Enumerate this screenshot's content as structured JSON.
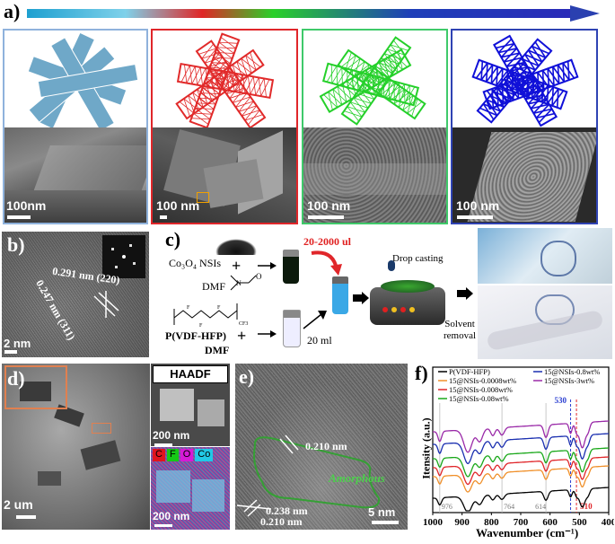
{
  "panel_a": {
    "label": "a)",
    "scale_labels": [
      "100nm",
      "100 nm",
      "100 nm",
      "100 nm"
    ],
    "frame_colors": [
      "#7fa7d8",
      "#e0262a",
      "#3fc96a",
      "#2f43b3"
    ],
    "sheet_colors": [
      "#6fa8c8",
      "#e12a2a",
      "#25d02a",
      "#1010d8"
    ]
  },
  "panel_b": {
    "label": "b)",
    "annotations": [
      "0.291 nm (220)",
      "0.247 nm (311)"
    ],
    "scale_label": "2 nm"
  },
  "panel_c": {
    "label": "c)",
    "reagent1": "Co₃O₄ NSIs",
    "solvent1": "DMF",
    "polymer": "P(VDF-HFP)",
    "solvent2": "DMF",
    "volume_added": "20-2000 ul",
    "volume_total": "20 ml",
    "step_casting": "Drop casting",
    "step_removal": "Solvent\nremoval",
    "plus": "+"
  },
  "panel_d": {
    "label": "d)",
    "scale_main": "2 um",
    "haadf_title": "HAADF",
    "scale_haadf": "200 nm",
    "scale_map": "200 nm",
    "elements": [
      {
        "symbol": "C",
        "color": "#e0141e"
      },
      {
        "symbol": "F",
        "color": "#16c816"
      },
      {
        "symbol": "O",
        "color": "#d61ad6"
      },
      {
        "symbol": "Co",
        "color": "#22c8e6"
      }
    ]
  },
  "panel_e": {
    "label": "e)",
    "annotations": [
      "0.210 nm",
      "Amorphous",
      "0.238 nm",
      "0.210 nm"
    ],
    "scale_label": "5 nm"
  },
  "panel_f": {
    "label": "f)",
    "xlabel": "Wavenumber (cm⁻¹)",
    "ylabel": "Itensity (a.u.)"
  },
  "chart_data": {
    "type": "line",
    "xlabel": "Wavenumber (cm-1)",
    "ylabel": "Itensity (a.u.)",
    "xlim": [
      1000,
      400
    ],
    "x_ticks": [
      1000,
      900,
      800,
      700,
      600,
      500,
      400
    ],
    "reference_lines": [
      976,
      764,
      614
    ],
    "marker_lines": [
      {
        "x": 530,
        "label": "530",
        "color": "#2b3fd1"
      },
      {
        "x": 510,
        "label": "510",
        "color": "#e0262a"
      }
    ],
    "series": [
      {
        "name": "P(VDF-HFP)",
        "color": "#000000"
      },
      {
        "name": "15@NSIs-0.0008wt%",
        "color": "#f0902a"
      },
      {
        "name": "15@NSIs-0.008wt%",
        "color": "#e0262a"
      },
      {
        "name": "15@NSIs-0.08wt%",
        "color": "#1aa81a"
      },
      {
        "name": "15@NSIs-0.8wt%",
        "color": "#1a2fb0"
      },
      {
        "name": "15@NSIs-3wt%",
        "color": "#9a2aa8"
      }
    ]
  }
}
